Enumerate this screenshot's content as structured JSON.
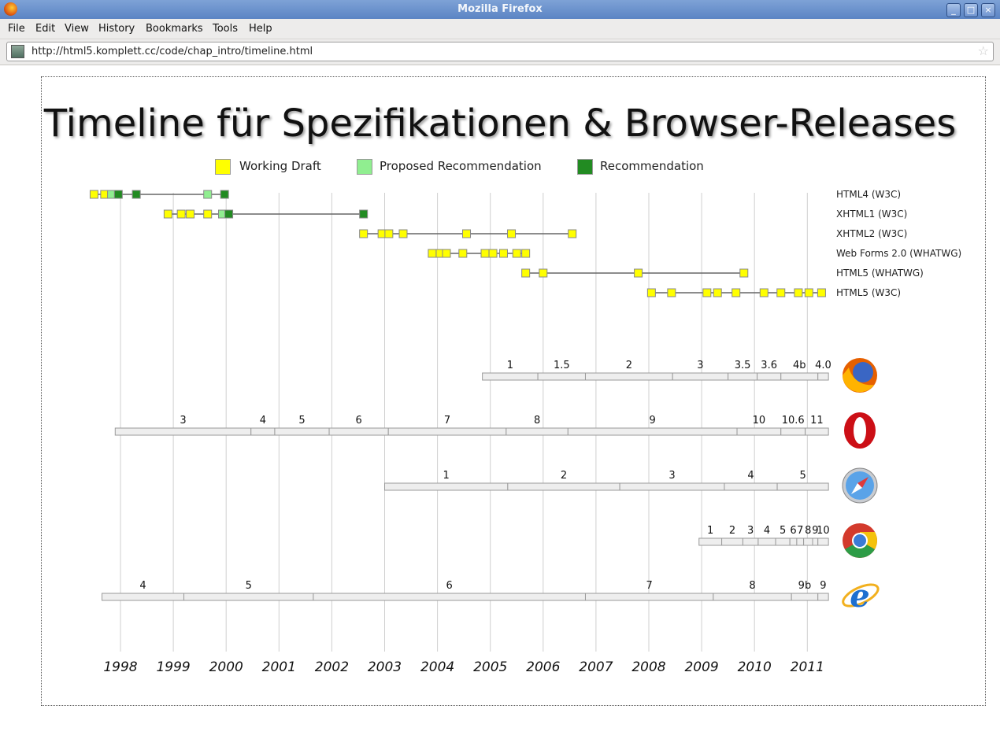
{
  "window": {
    "title": "Mozilla Firefox"
  },
  "menu": [
    "File",
    "Edit",
    "View",
    "History",
    "Bookmarks",
    "Tools",
    "Help"
  ],
  "url": "http://html5.komplett.cc/code/chap_intro/timeline.html",
  "page": {
    "title": "Timeline für Spezifikationen & Browser-Releases",
    "legend": [
      {
        "label": "Working Draft",
        "color": "#ffff00"
      },
      {
        "label": "Proposed Recommendation",
        "color": "#90ee90"
      },
      {
        "label": "Recommendation",
        "color": "#228b22"
      }
    ]
  },
  "chart_data": {
    "type": "timeline",
    "years": [
      "1998",
      "1999",
      "2000",
      "2001",
      "2002",
      "2003",
      "2004",
      "2005",
      "2006",
      "2007",
      "2008",
      "2009",
      "2010",
      "2011"
    ],
    "specs": [
      {
        "name": "HTML4 (W3C)",
        "events": [
          [
            1997.5,
            "wd"
          ],
          [
            1997.7,
            "wd"
          ],
          [
            1997.83,
            "pr"
          ],
          [
            1997.96,
            "rec"
          ],
          [
            1998.3,
            "rec"
          ],
          [
            1999.65,
            "pr"
          ],
          [
            1999.97,
            "rec"
          ]
        ]
      },
      {
        "name": "XHTML1 (W3C)",
        "events": [
          [
            1998.9,
            "wd"
          ],
          [
            1999.15,
            "wd"
          ],
          [
            1999.32,
            "wd"
          ],
          [
            1999.65,
            "wd"
          ],
          [
            1999.93,
            "pr"
          ],
          [
            2000.05,
            "rec"
          ],
          [
            2002.6,
            "rec"
          ]
        ]
      },
      {
        "name": "XHTML2 (W3C)",
        "events": [
          [
            2002.6,
            "wd"
          ],
          [
            2002.95,
            "wd"
          ],
          [
            2003.08,
            "wd"
          ],
          [
            2003.35,
            "wd"
          ],
          [
            2004.55,
            "wd"
          ],
          [
            2005.4,
            "wd"
          ],
          [
            2006.55,
            "wd"
          ]
        ]
      },
      {
        "name": "Web Forms 2.0 (WHATWG)",
        "events": [
          [
            2003.9,
            "wd"
          ],
          [
            2004.05,
            "wd"
          ],
          [
            2004.17,
            "wd"
          ],
          [
            2004.48,
            "wd"
          ],
          [
            2004.9,
            "wd"
          ],
          [
            2005.05,
            "wd"
          ],
          [
            2005.25,
            "wd"
          ],
          [
            2005.5,
            "wd"
          ],
          [
            2005.67,
            "wd"
          ]
        ]
      },
      {
        "name": "HTML5 (WHATWG)",
        "events": [
          [
            2005.67,
            "wd"
          ],
          [
            2006.0,
            "wd"
          ],
          [
            2007.8,
            "wd"
          ],
          [
            2009.8,
            "wd"
          ]
        ]
      },
      {
        "name": "HTML5 (W3C)",
        "events": [
          [
            2008.05,
            "wd"
          ],
          [
            2008.43,
            "wd"
          ],
          [
            2009.1,
            "wd"
          ],
          [
            2009.3,
            "wd"
          ],
          [
            2009.65,
            "wd"
          ],
          [
            2010.18,
            "wd"
          ],
          [
            2010.5,
            "wd"
          ],
          [
            2010.83,
            "wd"
          ],
          [
            2011.03,
            "wd"
          ],
          [
            2011.27,
            "wd"
          ]
        ]
      }
    ],
    "browsers": [
      {
        "name": "Firefox",
        "icon": "firefox-icon",
        "releases": [
          [
            "1",
            2004.85
          ],
          [
            "1.5",
            2005.9
          ],
          [
            "2",
            2006.8
          ],
          [
            "3",
            2008.45
          ],
          [
            "3.5",
            2009.5
          ],
          [
            "3.6",
            2010.05
          ],
          [
            "4b",
            2010.5
          ],
          [
            "4.0",
            2011.2
          ]
        ]
      },
      {
        "name": "Opera",
        "icon": "opera-icon",
        "releases": [
          [
            "3",
            1997.9
          ],
          [
            "4",
            2000.47
          ],
          [
            "5",
            2000.92
          ],
          [
            "6",
            2001.95
          ],
          [
            "7",
            2003.07
          ],
          [
            "8",
            2005.3
          ],
          [
            "9",
            2006.47
          ],
          [
            "10",
            2009.67
          ],
          [
            "10.6",
            2010.5
          ],
          [
            "11",
            2010.96
          ]
        ]
      },
      {
        "name": "Safari",
        "icon": "safari-icon",
        "releases": [
          [
            "1",
            2003.0
          ],
          [
            "2",
            2005.33
          ],
          [
            "3",
            2007.45
          ],
          [
            "4",
            2009.43
          ],
          [
            "5",
            2010.43
          ]
        ]
      },
      {
        "name": "Chrome",
        "icon": "chrome-icon",
        "releases": [
          [
            "1",
            2008.95
          ],
          [
            "2",
            2009.38
          ],
          [
            "3",
            2009.78
          ],
          [
            "4",
            2010.07
          ],
          [
            "5",
            2010.4
          ],
          [
            "6",
            2010.67
          ],
          [
            "7",
            2010.8
          ],
          [
            "8",
            2010.93
          ],
          [
            "9",
            2011.1
          ],
          [
            "10",
            2011.2
          ]
        ]
      },
      {
        "name": "Internet Explorer",
        "icon": "ie-icon",
        "releases": [
          [
            "4",
            1997.65
          ],
          [
            "5",
            1999.2
          ],
          [
            "6",
            2001.65
          ],
          [
            "7",
            2006.8
          ],
          [
            "8",
            2009.22
          ],
          [
            "9b",
            2010.7
          ],
          [
            "9",
            2011.2
          ]
        ]
      }
    ],
    "end": 2011.4
  }
}
